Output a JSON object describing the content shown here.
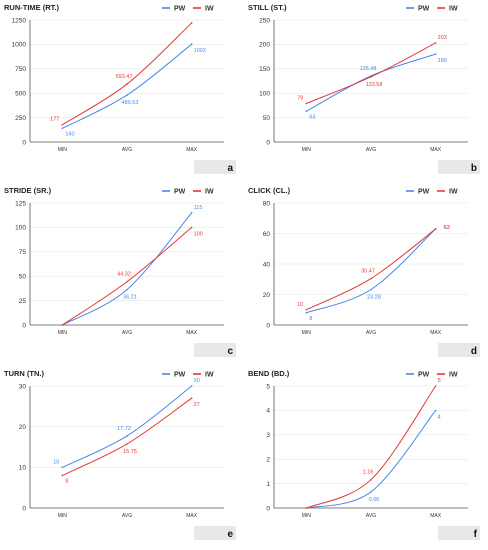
{
  "colors": {
    "pw": "#4a86e8",
    "iw": "#e53935",
    "letter_box": "#e8e8e8"
  },
  "chart_data": [
    {
      "type": "line",
      "panel": "a",
      "title": "RUN-TIME (RT.)",
      "categories": [
        "MIN",
        "AVG",
        "MAX"
      ],
      "ylim": [
        0,
        1250
      ],
      "yticks": [
        "0",
        "250",
        "500",
        "750",
        "1000",
        "1250"
      ],
      "ytick_values": [
        0,
        250,
        500,
        750,
        1000,
        1250
      ],
      "legend": "top-right",
      "grid": true,
      "series": [
        {
          "name": "PW",
          "values": [
            140,
            480.53,
            1002
          ],
          "labels": [
            "140",
            "480.53",
            "1002"
          ]
        },
        {
          "name": "IW",
          "values": [
            177,
            593.47,
            1220
          ],
          "labels": [
            "177",
            "593.47",
            ""
          ]
        }
      ]
    },
    {
      "type": "line",
      "panel": "b",
      "title": "STILL (ST.)",
      "categories": [
        "MIN",
        "AVG",
        "MAX"
      ],
      "ylim": [
        0,
        250
      ],
      "yticks": [
        "0",
        "50",
        "100",
        "150",
        "200",
        "250"
      ],
      "ytick_values": [
        0,
        50,
        100,
        150,
        200,
        250
      ],
      "legend": "top-right",
      "grid": true,
      "series": [
        {
          "name": "PW",
          "values": [
            63,
            135.48,
            180
          ],
          "labels": [
            "63",
            "135.48",
            "180"
          ]
        },
        {
          "name": "IW",
          "values": [
            79,
            133.58,
            203
          ],
          "labels": [
            "79",
            "133.58",
            "203"
          ]
        }
      ]
    },
    {
      "type": "line",
      "panel": "c",
      "title": "STRIDE (SR.)",
      "categories": [
        "MIN",
        "AVG",
        "MAX"
      ],
      "ylim": [
        0,
        125
      ],
      "yticks": [
        "0",
        "25",
        "50",
        "75",
        "100",
        "125"
      ],
      "ytick_values": [
        0,
        25,
        50,
        75,
        100,
        125
      ],
      "legend": "top-right",
      "grid": true,
      "series": [
        {
          "name": "PW",
          "values": [
            0,
            36.21,
            115
          ],
          "labels": [
            "",
            "36.21",
            "115"
          ]
        },
        {
          "name": "IW",
          "values": [
            0,
            44.32,
            100
          ],
          "labels": [
            "",
            "44.32",
            "100"
          ]
        }
      ]
    },
    {
      "type": "line",
      "panel": "d",
      "title": "CLICK (CL.)",
      "categories": [
        "MIN",
        "AVG",
        "MAX"
      ],
      "ylim": [
        0,
        80
      ],
      "yticks": [
        "0",
        "20",
        "40",
        "60",
        "80"
      ],
      "ytick_values": [
        0,
        20,
        40,
        60,
        80
      ],
      "legend": "top-right",
      "grid": true,
      "series": [
        {
          "name": "PW",
          "values": [
            8,
            23.28,
            63
          ],
          "labels": [
            "8",
            "23.28",
            "63"
          ]
        },
        {
          "name": "IW",
          "values": [
            10,
            30.47,
            63
          ],
          "labels": [
            "10",
            "30.47",
            "63"
          ]
        }
      ]
    },
    {
      "type": "line",
      "panel": "e",
      "title": "TURN (TN.)",
      "categories": [
        "MIN",
        "AVG",
        "MAX"
      ],
      "ylim": [
        0,
        30
      ],
      "yticks": [
        "0",
        "10",
        "20",
        "30"
      ],
      "ytick_values": [
        0,
        10,
        20,
        30
      ],
      "legend": "top-right",
      "grid": true,
      "series": [
        {
          "name": "PW",
          "values": [
            10,
            17.72,
            30
          ],
          "labels": [
            "10",
            "17.72",
            "30"
          ]
        },
        {
          "name": "IW",
          "values": [
            8,
            15.75,
            27
          ],
          "labels": [
            "8",
            "15.75",
            "27"
          ]
        }
      ]
    },
    {
      "type": "line",
      "panel": "f",
      "title": "BEND (BD.)",
      "categories": [
        "MIN",
        "AVG",
        "MAX"
      ],
      "ylim": [
        0,
        5
      ],
      "yticks": [
        "0",
        "1",
        "2",
        "3",
        "4",
        "5"
      ],
      "ytick_values": [
        0,
        1,
        2,
        3,
        4,
        5
      ],
      "legend": "top-right",
      "grid": true,
      "series": [
        {
          "name": "PW",
          "values": [
            0,
            0.66,
            4
          ],
          "labels": [
            "",
            "0.66",
            "4"
          ]
        },
        {
          "name": "IW",
          "values": [
            0,
            1.16,
            5
          ],
          "labels": [
            "",
            "1.16",
            "5"
          ]
        }
      ]
    }
  ]
}
